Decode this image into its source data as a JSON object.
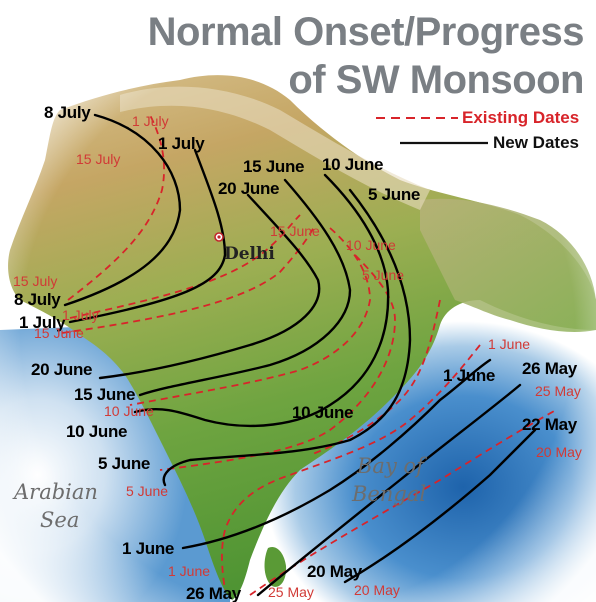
{
  "title": {
    "line1": "Normal Onset/Progress",
    "line2": "of SW Monsoon"
  },
  "legend": {
    "existing": {
      "label": "Existing Dates",
      "color": "#d8242a",
      "style": "dashed"
    },
    "new": {
      "label": "New Dates",
      "color": "#111111",
      "style": "solid"
    }
  },
  "places": {
    "city": "Delhi",
    "arabian_sea_line1": "Arabian",
    "arabian_sea_line2": "Sea",
    "bay_line1": "Bay of",
    "bay_line2": "Bengal"
  },
  "new_dates": {
    "d1": "8 July",
    "d2": "1 July",
    "d3": "15 June",
    "d4": "20 June",
    "d5": "10 June",
    "d6": "5 June",
    "d7": "8 July",
    "d8": "1 July",
    "d9": "20 June",
    "d10": "15 June",
    "d11": "1 June",
    "d12": "26 May",
    "d13": "10 June",
    "d14": "22 May",
    "d15": "10 June",
    "d16": "5 June",
    "d17": "1 June",
    "d18": "20 May",
    "d19": "26 May"
  },
  "existing_dates": {
    "e1": "1 July",
    "e2": "15 July",
    "e3": "15 June",
    "e4": "10 June",
    "e5": "5 June",
    "e6": "15 July",
    "e7": "1 July",
    "e8": "15 June",
    "e9": "1 June",
    "e10": "25 May",
    "e11": "10 June",
    "e12": "20 May",
    "e13": "5 June",
    "e14": "1 June",
    "e15": "25 May",
    "e16": "20 May"
  },
  "colors": {
    "new_line": "#000000",
    "existing_line": "#d8242a",
    "sea": "#2b73b8",
    "land_north": "#c9a869",
    "land_south": "#5da03a",
    "title": "#7a7f84"
  }
}
